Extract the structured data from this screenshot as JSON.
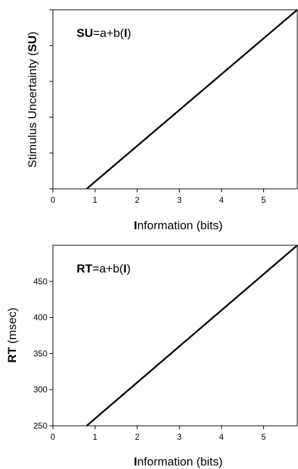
{
  "chart_data": [
    {
      "type": "line",
      "annotation": {
        "bold1": "SU",
        "mid": "=a+b(",
        "bold2": "I",
        "end": ")"
      },
      "xlabel": {
        "bold": "I",
        "rest": "nformation (bits)"
      },
      "ylabel": {
        "rest": "Stimulus Uncertainty (",
        "bold": "SU",
        "end": ")"
      },
      "xlim": [
        0,
        5.8
      ],
      "ylim": [
        0,
        1
      ],
      "x_ticks": [
        "0",
        "1",
        "2",
        "3",
        "4",
        "5"
      ],
      "y_ticks": [],
      "series": [
        {
          "x": [
            0.8,
            5.8
          ],
          "y": [
            0,
            1
          ]
        }
      ]
    },
    {
      "type": "line",
      "annotation": {
        "bold1": "RT",
        "mid": "=a+b(",
        "bold2": "I",
        "end": ")"
      },
      "xlabel": {
        "bold": "I",
        "rest": "nformation (bits)"
      },
      "ylabel": {
        "bold": "RT",
        "rest": " (msec)"
      },
      "xlim": [
        0,
        5.8
      ],
      "ylim": [
        250,
        500
      ],
      "x_ticks": [
        "0",
        "1",
        "2",
        "3",
        "4",
        "5"
      ],
      "y_ticks": [
        "250",
        "300",
        "350",
        "400",
        "450"
      ],
      "series": [
        {
          "x": [
            0.8,
            5.8
          ],
          "y": [
            250,
            500
          ]
        }
      ]
    }
  ]
}
